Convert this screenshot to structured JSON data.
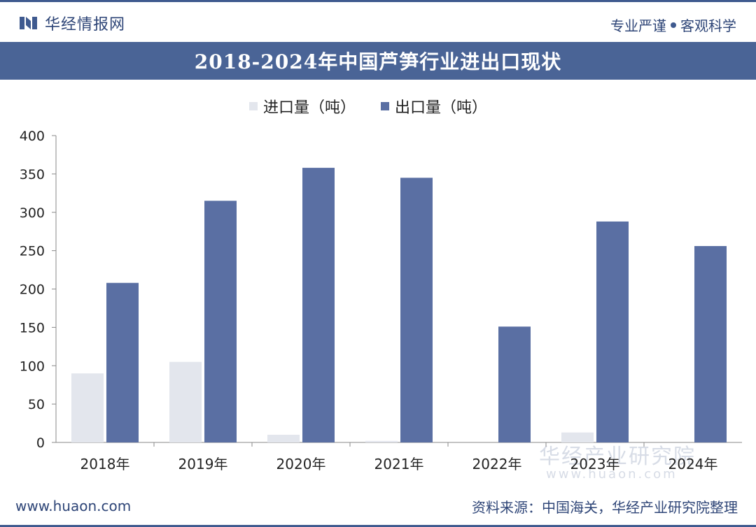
{
  "header": {
    "brand_name": "华经情报网",
    "slogan_left": "专业严谨",
    "slogan_right": "客观科学"
  },
  "chart_title": "2018-2024年中国芦笋行业进出口现状",
  "colors": {
    "import": "#e3e6ed",
    "export": "#5a6fa3",
    "title_bg": "#4a6496",
    "brand": "#2e4577"
  },
  "chart_data": {
    "type": "bar",
    "categories": [
      "2018年",
      "2019年",
      "2020年",
      "2021年",
      "2022年",
      "2023年",
      "2024年"
    ],
    "series": [
      {
        "name": "进口量（吨）",
        "values": [
          90,
          105,
          10,
          2,
          0,
          13,
          0
        ]
      },
      {
        "name": "出口量（吨）",
        "values": [
          208,
          315,
          358,
          345,
          151,
          288,
          256
        ]
      }
    ],
    "ylim": [
      0,
      400
    ],
    "yticks": [
      "0",
      "50",
      "100",
      "150",
      "200",
      "250",
      "300",
      "350",
      "400"
    ],
    "legend_position": "top-center"
  },
  "footer": {
    "website": "www.huaon.com",
    "source": "资料来源：中国海关，华经产业研究院整理"
  },
  "watermark": {
    "text": "华经产业研究院",
    "url": "www.huaon.com"
  }
}
